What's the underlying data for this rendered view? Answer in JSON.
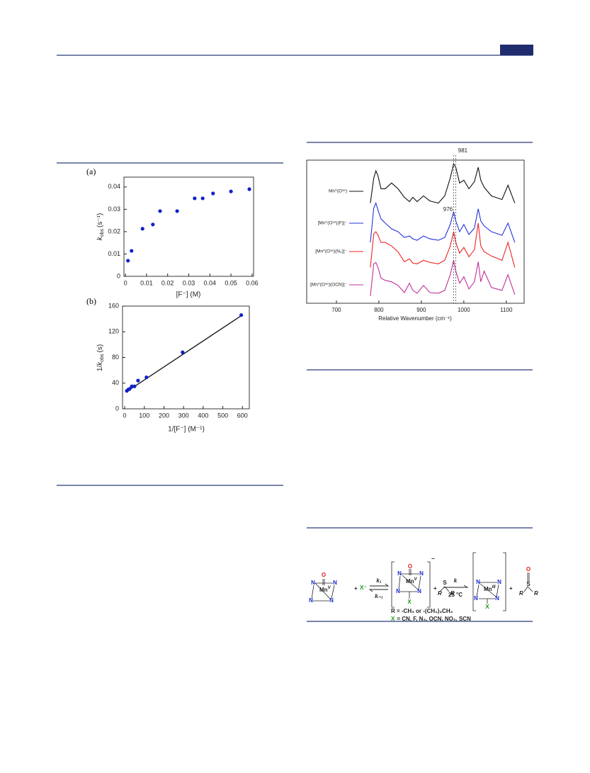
{
  "panels": {
    "a": "(a)",
    "b": "(b)"
  },
  "chart_data": [
    {
      "type": "scatter",
      "color": "#1020c8",
      "x_label": "[F⁻] (M)",
      "y_label": {
        "symbol": "k",
        "subscript": "obs",
        "unit": "(s⁻¹)"
      },
      "x": [
        0.0012,
        0.0029,
        0.0081,
        0.013,
        0.0164,
        0.0245,
        0.0328,
        0.0366,
        0.0415,
        0.05,
        0.0587
      ],
      "values": [
        0.007,
        0.0114,
        0.0213,
        0.0232,
        0.0292,
        0.0292,
        0.0349,
        0.0349,
        0.0371,
        0.038,
        0.039
      ],
      "xlim": [
        -0.0007,
        0.0607
      ],
      "xticks": [
        0,
        0.01,
        0.02,
        0.03,
        0.04,
        0.05,
        0.06
      ],
      "ylim": [
        0,
        0.0444
      ],
      "yticks": [
        0,
        0.01,
        0.02,
        0.03,
        0.04
      ]
    },
    {
      "type": "scatter",
      "color": "#1020c8",
      "x_label": "1/[F⁻] (M⁻¹)",
      "y_label": {
        "prefix": "1/",
        "symbol": "k",
        "subscript": "obs",
        "unit": "(s)"
      },
      "x": [
        11,
        18,
        25,
        36,
        50,
        68,
        111,
        295,
        594
      ],
      "values": [
        28,
        30,
        31,
        35,
        35,
        44,
        49,
        88,
        146
      ],
      "fit": {
        "x": [
          11,
          594
        ],
        "y": [
          27,
          145
        ]
      },
      "xlim": [
        -11,
        635
      ],
      "xticks": [
        0,
        100,
        200,
        300,
        400,
        500,
        600
      ],
      "ylim": [
        0,
        160
      ],
      "yticks": [
        0,
        40,
        80,
        120,
        160
      ]
    },
    {
      "type": "line",
      "x_label": "Relative Wavenumber (cm⁻¹)",
      "x": [
        780,
        788,
        793,
        798,
        805,
        815,
        830,
        845,
        860,
        872,
        880,
        890,
        905,
        920,
        940,
        955,
        968,
        976,
        981,
        990,
        1000,
        1012,
        1025,
        1034,
        1040,
        1048,
        1065,
        1090,
        1104,
        1120
      ],
      "series": [
        {
          "name": "Mnⱽ(O¹⁶)",
          "color": "#111111",
          "values": [
            140,
            175,
            185,
            178,
            160,
            160,
            168,
            160,
            148,
            142,
            148,
            142,
            150,
            143,
            140,
            150,
            175,
            195,
            190,
            168,
            172,
            160,
            170,
            190,
            172,
            162,
            150,
            145,
            165,
            140
          ]
        },
        {
          "name": "[Mnⱽ(O¹⁶)(F)]⁻",
          "color": "#2233dd",
          "values": [
            85,
            133,
            140,
            130,
            118,
            112,
            104,
            100,
            92,
            94,
            90,
            88,
            94,
            90,
            88,
            92,
            110,
            128,
            115,
            100,
            110,
            96,
            105,
            132,
            115,
            108,
            100,
            95,
            112,
            85
          ]
        },
        {
          "name": "[Mnⱽ(O¹⁶)(N₃)]⁻",
          "color": "#ee2222",
          "values": [
            50,
            97,
            100,
            95,
            85,
            85,
            80,
            72,
            58,
            62,
            56,
            55,
            60,
            57,
            55,
            60,
            80,
            100,
            85,
            70,
            78,
            65,
            75,
            112,
            80,
            72,
            66,
            60,
            85,
            50
          ]
        },
        {
          "name": "[Mnⱽ(O¹⁶)(OCN)]⁻",
          "color": "#c0309a",
          "values": [
            10,
            55,
            57,
            50,
            35,
            32,
            30,
            25,
            15,
            28,
            18,
            14,
            25,
            15,
            14,
            18,
            40,
            60,
            45,
            28,
            37,
            20,
            30,
            58,
            30,
            45,
            22,
            18,
            40,
            12
          ]
        }
      ],
      "annotations": [
        {
          "text": "981",
          "x": 981
        },
        {
          "text": "976",
          "x": 976
        }
      ],
      "xlim": [
        630,
        1142
      ],
      "xticks": [
        700,
        800,
        900,
        1000,
        1100
      ],
      "ylim": [
        0,
        200
      ]
    }
  ],
  "scheme": {
    "oxo": "O",
    "nitrogen": "N",
    "metal": "Mn",
    "ox5": "V",
    "ox3": "III",
    "anion": "X⁻",
    "ligand": "X",
    "sulfur": "S",
    "substituent": "R",
    "plus": "+",
    "minus": "−",
    "k1": "k₁",
    "k_minus1": "k₋₁",
    "k": "k",
    "temp": "25 °C",
    "r_def": "R = -CH₃ or -(CH₂)₃CH₃",
    "x_def": "= CN, F, N₃, OCN, NO₃, SCN"
  }
}
